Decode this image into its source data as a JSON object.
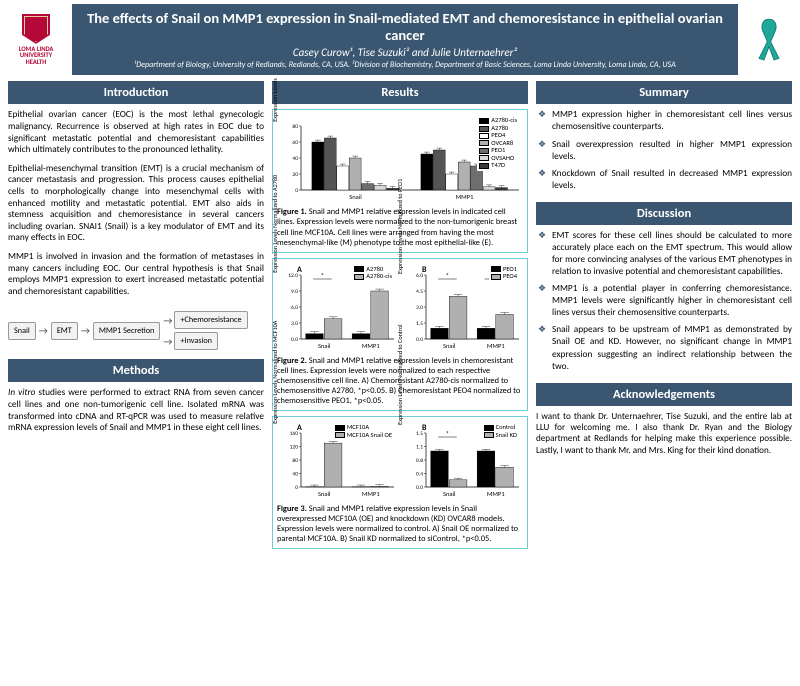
{
  "logo": {
    "line1": "LOMA LINDA",
    "line2": "UNIVERSITY",
    "line3": "HEALTH"
  },
  "title": {
    "main": "The effects of Snail on MMP1 expression in Snail-mediated EMT and chemoresistance in epithelial ovarian cancer",
    "authors": "Casey Curow¹, Tise Suzuki² and Julie Unternaehrer²",
    "affil": "¹Department of Biology, University of Redlands, Redlands, CA, USA. ²Division of Biochemistry, Department of Basic Sciences, Loma Linda University, Loma Linda, CA, USA"
  },
  "sections": {
    "intro": "Introduction",
    "methods": "Methods",
    "results": "Results",
    "summary": "Summary",
    "discussion": "Discussion",
    "ack": "Acknowledgements"
  },
  "intro": {
    "p1": "Epithelial ovarian cancer (EOC) is the most lethal gynecologic malignancy. Recurrence is observed at high rates in EOC due to significant metastatic potential and chemoresistant capabilities which ultimately contributes to the pronounced lethality.",
    "p2": "Epithelial-mesenchymal transition (EMT) is a crucial mechanism of cancer metastasis and progression. This process causes epithelial cells to morphologically change into mesenchymal cells with enhanced motility and metastatic potential. EMT also aids in stemness acquisition and chemoresistance in several cancers including ovarian. SNAI1 (Snail) is a key modulator of EMT and its many effects in EOC.",
    "p3": "MMP1 is involved in invasion and the formation of metastases in many cancers including EOC. Our central hypothesis is that Snail employs MMP1 expression to exert increased metastatic potential and chemoresistant capabilities."
  },
  "diagram": {
    "snail": "Snail",
    "emt": "EMT",
    "mmp": "MMP1 Secretion",
    "chemo": "+Chemoresistance",
    "inv": "+Invasion"
  },
  "methods": {
    "text": "In vitro studies were performed to extract RNA from seven cancer cell lines and one non-tumorigenic cell line. Isolated mRNA was transformed into cDNA and RT-qPCR was used to measure relative mRNA expression levels of Snail and MMP1 in these eight cell lines."
  },
  "fig1": {
    "caption_b": "Figure 1.",
    "caption": " Snail and MMP1 relative expression levels in indicated cell lines. Expression levels were normalized to the non-tumorigenic breast cell line MCF10A. Cell lines were arranged from having the most mesenchymal-like (M) phenotype to the most epithelial-like (E).",
    "ylabel": "Expression Levels Normalized to MCF10A",
    "groups": [
      "Snail",
      "MMP1"
    ],
    "legend": [
      "A2780-cis",
      "A2780",
      "PEO4",
      "OVCAR8",
      "PEO1",
      "OVSAHO",
      "T47D"
    ],
    "colors": [
      "#000000",
      "#555555",
      "#ffffff",
      "#b0b0b0",
      "#6e6e6e",
      "#d9d9d9",
      "#3a3a3a"
    ],
    "values": [
      [
        60,
        65,
        30,
        40,
        8,
        6,
        2
      ],
      [
        45,
        50,
        20,
        35,
        30,
        4,
        3
      ]
    ],
    "ymax": 80
  },
  "fig2": {
    "caption_b": "Figure 2.",
    "caption": " Snail and MMP1 relative expression levels in chemoresistant cell lines. Expression levels were normalized to each respective chemosensitive cell line. A) Chemoresistant A2780-cis normalized to chemosensitive A2780, *p<0.05. B) Chemoresistant PEO4 normalized to chemosensitive PEO1, *p<0.05.",
    "panelA": {
      "letter": "A",
      "ylabel": "Expression Levels Normalized to A2780",
      "legend": [
        "A2780",
        "A2780-cis"
      ],
      "colors": [
        "#000000",
        "#b0b0b0"
      ],
      "groups": [
        "Snail",
        "MMP1"
      ],
      "values": [
        [
          1,
          3.8
        ],
        [
          1,
          9
        ]
      ],
      "ymax": 12,
      "sig": [
        true,
        true
      ]
    },
    "panelB": {
      "letter": "B",
      "ylabel": "Expression Levels Normalized to PEO1",
      "legend": [
        "PEO1",
        "PEO4"
      ],
      "colors": [
        "#000000",
        "#b0b0b0"
      ],
      "groups": [
        "Snail",
        "MMP1"
      ],
      "values": [
        [
          1,
          4
        ],
        [
          1,
          2.3
        ]
      ],
      "ymax": 6,
      "sig": [
        true,
        true
      ]
    }
  },
  "fig3": {
    "caption_b": "Figure 3.",
    "caption": " Snail and MMP1 relative expression levels in Snail overexpressed MCF10A (OE) and knockdown (KD) OVCAR8 models. Expression levels were normalized to control. A) Snail OE normalized to parental MCF10A. B) Snail KD normalized to siControl, *p<0.05.",
    "panelA": {
      "letter": "A",
      "ylabel": "Expression Levels Normalized to MCF10A",
      "legend": [
        "MCF10A",
        "MCF10A Snail OE"
      ],
      "colors": [
        "#000000",
        "#b0b0b0"
      ],
      "groups": [
        "Snail",
        "MMP1"
      ],
      "values": [
        [
          1,
          130
        ],
        [
          1,
          2
        ]
      ],
      "ymax": 160,
      "sig": [
        false,
        false
      ]
    },
    "panelB": {
      "letter": "B",
      "ylabel": "Expression Levels Normalized to Control",
      "legend": [
        "Control",
        "Snail KD"
      ],
      "colors": [
        "#000000",
        "#b0b0b0"
      ],
      "groups": [
        "Snail",
        "MMP1"
      ],
      "values": [
        [
          1,
          0.2
        ],
        [
          1,
          0.55
        ]
      ],
      "ymax": 1.5,
      "sig": [
        true,
        false
      ]
    }
  },
  "summary": {
    "b1": "MMP1 expression higher in chemoresistant cell lines versus chemosensitive counterparts.",
    "b2": "Snail overexpression resulted in higher MMP1 expression levels.",
    "b3": "Knockdown of Snail resulted in decreased MMP1 expression levels."
  },
  "discussion": {
    "b1": "EMT scores for these cell lines should be calculated to more accurately place each on the EMT spectrum. This would allow for more convincing analyses of the various EMT phenotypes in relation to invasive potential and chemoresistant capabilities.",
    "b2": "MMP1 is a potential player in conferring chemoresistance. MMP1 levels were significantly higher in chemoresistant cell lines versus their chemosensitive counterparts.",
    "b3": "Snail appears to be upstream of MMP1 as demonstrated by Snail OE and KD. However, no significant change in MMP1 expression suggesting an indirect relationship between the two."
  },
  "ack": {
    "text": "I want to thank Dr. Unternaehrer, Tise Suzuki, and the entire lab at LLU for welcoming me. I also thank Dr. Ryan and the Biology department at Redlands for helping make this experience possible. Lastly, I want to thank Mr. and Mrs. King for their kind donation."
  }
}
